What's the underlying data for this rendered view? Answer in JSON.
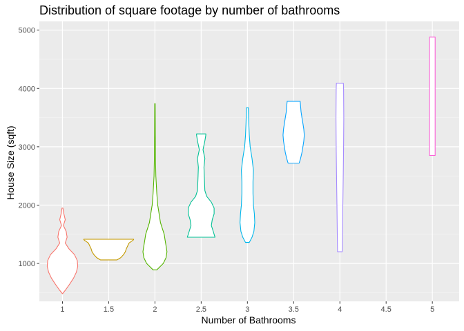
{
  "chart_data": {
    "type": "violin",
    "title": "Distribution of square footage by number of bathrooms",
    "xlabel": "Number of Bathrooms",
    "ylabel": "House Size (sqft)",
    "x_ticks": [
      "1",
      "1.5",
      "2",
      "2.5",
      "3",
      "3.5",
      "4",
      "4.5",
      "5"
    ],
    "y_ticks": [
      1000,
      2000,
      3000,
      4000,
      5000
    ],
    "ylim": [
      350,
      5150
    ],
    "xlim": [
      0.75,
      5.29
    ],
    "grid": true,
    "legend": "none",
    "series": [
      {
        "x": 1,
        "color": "#F8766D",
        "profile": [
          [
            480,
            0.0
          ],
          [
            550,
            0.035
          ],
          [
            650,
            0.08
          ],
          [
            750,
            0.12
          ],
          [
            850,
            0.15
          ],
          [
            950,
            0.165
          ],
          [
            1050,
            0.16
          ],
          [
            1150,
            0.13
          ],
          [
            1250,
            0.07
          ],
          [
            1350,
            0.03
          ],
          [
            1450,
            0.05
          ],
          [
            1550,
            0.04
          ],
          [
            1650,
            0.01
          ],
          [
            1750,
            0.03
          ],
          [
            1850,
            0.015
          ],
          [
            1950,
            0.005
          ]
        ]
      },
      {
        "x": 1.5,
        "color": "#C49A00",
        "profile": [
          [
            1060,
            0.09
          ],
          [
            1100,
            0.13
          ],
          [
            1150,
            0.16
          ],
          [
            1200,
            0.18
          ],
          [
            1250,
            0.19
          ],
          [
            1300,
            0.205
          ],
          [
            1350,
            0.22
          ],
          [
            1400,
            0.265
          ],
          [
            1410,
            0.27
          ],
          [
            1415,
            0.27
          ]
        ]
      },
      {
        "x": 2,
        "color": "#53B400",
        "profile": [
          [
            890,
            0.02
          ],
          [
            1000,
            0.09
          ],
          [
            1100,
            0.12
          ],
          [
            1200,
            0.13
          ],
          [
            1300,
            0.12
          ],
          [
            1400,
            0.11
          ],
          [
            1500,
            0.1
          ],
          [
            1600,
            0.08
          ],
          [
            1700,
            0.06
          ],
          [
            1800,
            0.05
          ],
          [
            1900,
            0.04
          ],
          [
            2000,
            0.03
          ],
          [
            2200,
            0.02
          ],
          [
            2500,
            0.01
          ],
          [
            2800,
            0.006
          ],
          [
            3200,
            0.004
          ],
          [
            3500,
            0.003
          ],
          [
            3740,
            0.002
          ]
        ]
      },
      {
        "x": 2.5,
        "color": "#00C094",
        "profile": [
          [
            1450,
            0.15
          ],
          [
            1550,
            0.13
          ],
          [
            1650,
            0.11
          ],
          [
            1750,
            0.12
          ],
          [
            1850,
            0.14
          ],
          [
            1950,
            0.14
          ],
          [
            2050,
            0.11
          ],
          [
            2150,
            0.06
          ],
          [
            2250,
            0.04
          ],
          [
            2450,
            0.035
          ],
          [
            2650,
            0.03
          ],
          [
            2800,
            0.04
          ],
          [
            2950,
            0.02
          ],
          [
            3100,
            0.04
          ],
          [
            3200,
            0.05
          ],
          [
            3220,
            0.05
          ]
        ]
      },
      {
        "x": 3,
        "color": "#00B6EB",
        "profile": [
          [
            1360,
            0.02
          ],
          [
            1450,
            0.05
          ],
          [
            1550,
            0.07
          ],
          [
            1700,
            0.08
          ],
          [
            1850,
            0.075
          ],
          [
            2000,
            0.065
          ],
          [
            2200,
            0.06
          ],
          [
            2400,
            0.06
          ],
          [
            2600,
            0.065
          ],
          [
            2800,
            0.05
          ],
          [
            3000,
            0.03
          ],
          [
            3200,
            0.02
          ],
          [
            3400,
            0.015
          ],
          [
            3670,
            0.01
          ]
        ]
      },
      {
        "x": 3.5,
        "color": "#06A4FF",
        "profile": [
          [
            2720,
            0.06
          ],
          [
            2800,
            0.075
          ],
          [
            2900,
            0.09
          ],
          [
            3000,
            0.1
          ],
          [
            3100,
            0.11
          ],
          [
            3200,
            0.115
          ],
          [
            3300,
            0.11
          ],
          [
            3400,
            0.1
          ],
          [
            3500,
            0.09
          ],
          [
            3600,
            0.08
          ],
          [
            3700,
            0.075
          ],
          [
            3780,
            0.07
          ]
        ]
      },
      {
        "x": 4,
        "color": "#A58AFF",
        "profile": [
          [
            1200,
            0.025
          ],
          [
            1500,
            0.028
          ],
          [
            2000,
            0.032
          ],
          [
            2500,
            0.036
          ],
          [
            3000,
            0.04
          ],
          [
            3500,
            0.042
          ],
          [
            4000,
            0.04
          ],
          [
            4090,
            0.038
          ]
        ]
      },
      {
        "x": 5,
        "color": "#FB61D7",
        "profile": [
          [
            2850,
            0.03
          ],
          [
            3500,
            0.03
          ],
          [
            4200,
            0.03
          ],
          [
            4880,
            0.03
          ]
        ]
      }
    ]
  }
}
